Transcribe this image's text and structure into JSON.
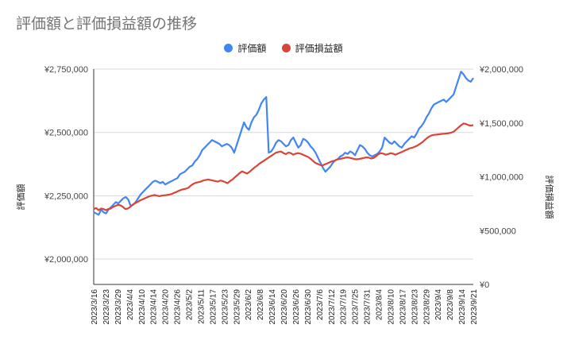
{
  "chart_data": {
    "type": "line",
    "title": "評価額と評価損益額の推移",
    "y_left_label": "評価額",
    "y_right_label": "評価損益額",
    "y_left_range": [
      1900000,
      2750000
    ],
    "y_right_range": [
      0,
      2000000
    ],
    "y_left_ticks": [
      2000000,
      2250000,
      2500000,
      2750000
    ],
    "y_left_tick_labels": [
      "¥2,000,000",
      "¥2,250,000",
      "¥2,500,000",
      "¥2,750,000"
    ],
    "y_right_ticks": [
      0,
      500000,
      1000000,
      1500000,
      2000000
    ],
    "y_right_tick_labels": [
      "¥0",
      "¥500,000",
      "¥1,000,000",
      "¥1,500,000",
      "¥2,000,000"
    ],
    "gridlines": true,
    "legend_position": "top",
    "x_tick_labels": [
      "2023/3/16",
      "2023/3/23",
      "2023/3/29",
      "2023/4/4",
      "2023/4/10",
      "2023/4/14",
      "2023/4/20",
      "2023/4/26",
      "2023/5/2",
      "2023/5/11",
      "2023/5/17",
      "2023/5/23",
      "2023/5/29",
      "2023/6/2",
      "2023/6/8",
      "2023/6/14",
      "2023/6/20",
      "2023/6/26",
      "2023/6/30",
      "2023/7/6",
      "2023/7/12",
      "2023/7/19",
      "2023/7/25",
      "2023/7/31",
      "2023/8/4",
      "2023/8/10",
      "2023/8/17",
      "2023/8/23",
      "2023/8/29",
      "2023/9/4",
      "2023/9/8",
      "2023/9/14",
      "2023/9/21"
    ],
    "series": [
      {
        "name": "評価額",
        "axis": "left",
        "color": "#4285f4",
        "values": [
          2185000,
          2180000,
          2175000,
          2195000,
          2185000,
          2180000,
          2195000,
          2205000,
          2215000,
          2225000,
          2220000,
          2230000,
          2240000,
          2245000,
          2235000,
          2210000,
          2215000,
          2225000,
          2240000,
          2255000,
          2265000,
          2275000,
          2285000,
          2295000,
          2305000,
          2310000,
          2305000,
          2300000,
          2305000,
          2295000,
          2300000,
          2305000,
          2310000,
          2315000,
          2320000,
          2335000,
          2340000,
          2345000,
          2355000,
          2365000,
          2370000,
          2385000,
          2395000,
          2410000,
          2430000,
          2440000,
          2450000,
          2460000,
          2470000,
          2465000,
          2460000,
          2455000,
          2445000,
          2450000,
          2455000,
          2450000,
          2440000,
          2420000,
          2450000,
          2480000,
          2510000,
          2540000,
          2520000,
          2510000,
          2540000,
          2560000,
          2570000,
          2590000,
          2615000,
          2630000,
          2640000,
          2420000,
          2425000,
          2440000,
          2460000,
          2470000,
          2465000,
          2455000,
          2445000,
          2450000,
          2470000,
          2480000,
          2460000,
          2440000,
          2450000,
          2475000,
          2470000,
          2460000,
          2445000,
          2435000,
          2420000,
          2400000,
          2380000,
          2360000,
          2345000,
          2355000,
          2365000,
          2380000,
          2390000,
          2395000,
          2405000,
          2410000,
          2420000,
          2415000,
          2425000,
          2420000,
          2410000,
          2430000,
          2450000,
          2445000,
          2435000,
          2420000,
          2410000,
          2405000,
          2410000,
          2415000,
          2425000,
          2440000,
          2480000,
          2470000,
          2460000,
          2455000,
          2465000,
          2455000,
          2445000,
          2440000,
          2455000,
          2465000,
          2475000,
          2485000,
          2480000,
          2495000,
          2515000,
          2525000,
          2540000,
          2560000,
          2575000,
          2595000,
          2610000,
          2615000,
          2620000,
          2625000,
          2630000,
          2620000,
          2630000,
          2640000,
          2650000,
          2680000,
          2710000,
          2740000,
          2730000,
          2715000,
          2705000,
          2700000,
          2715000
        ]
      },
      {
        "name": "評価損益額",
        "axis": "right",
        "color": "#db4437",
        "values": [
          700000,
          710000,
          690000,
          705000,
          700000,
          690000,
          700000,
          705000,
          720000,
          730000,
          740000,
          735000,
          720000,
          700000,
          705000,
          720000,
          740000,
          755000,
          765000,
          780000,
          790000,
          800000,
          810000,
          820000,
          825000,
          830000,
          825000,
          820000,
          825000,
          828000,
          830000,
          835000,
          840000,
          850000,
          860000,
          870000,
          880000,
          885000,
          890000,
          900000,
          920000,
          935000,
          945000,
          950000,
          955000,
          965000,
          970000,
          975000,
          970000,
          965000,
          960000,
          955000,
          965000,
          960000,
          950000,
          940000,
          960000,
          975000,
          995000,
          1015000,
          1035000,
          1050000,
          1040000,
          1030000,
          1045000,
          1065000,
          1085000,
          1100000,
          1120000,
          1135000,
          1150000,
          1165000,
          1180000,
          1195000,
          1210000,
          1225000,
          1230000,
          1235000,
          1220000,
          1210000,
          1225000,
          1220000,
          1205000,
          1215000,
          1220000,
          1215000,
          1205000,
          1195000,
          1185000,
          1170000,
          1150000,
          1130000,
          1120000,
          1110000,
          1105000,
          1115000,
          1125000,
          1135000,
          1145000,
          1150000,
          1160000,
          1165000,
          1170000,
          1175000,
          1180000,
          1178000,
          1172000,
          1165000,
          1162000,
          1165000,
          1170000,
          1175000,
          1180000,
          1178000,
          1170000,
          1175000,
          1190000,
          1210000,
          1220000,
          1215000,
          1205000,
          1210000,
          1220000,
          1215000,
          1205000,
          1215000,
          1225000,
          1235000,
          1245000,
          1255000,
          1265000,
          1270000,
          1280000,
          1290000,
          1305000,
          1320000,
          1340000,
          1360000,
          1375000,
          1385000,
          1390000,
          1392000,
          1395000,
          1398000,
          1400000,
          1402000,
          1405000,
          1410000,
          1420000,
          1440000,
          1460000,
          1480000,
          1495000,
          1490000,
          1480000,
          1475000,
          1480000
        ]
      }
    ]
  }
}
